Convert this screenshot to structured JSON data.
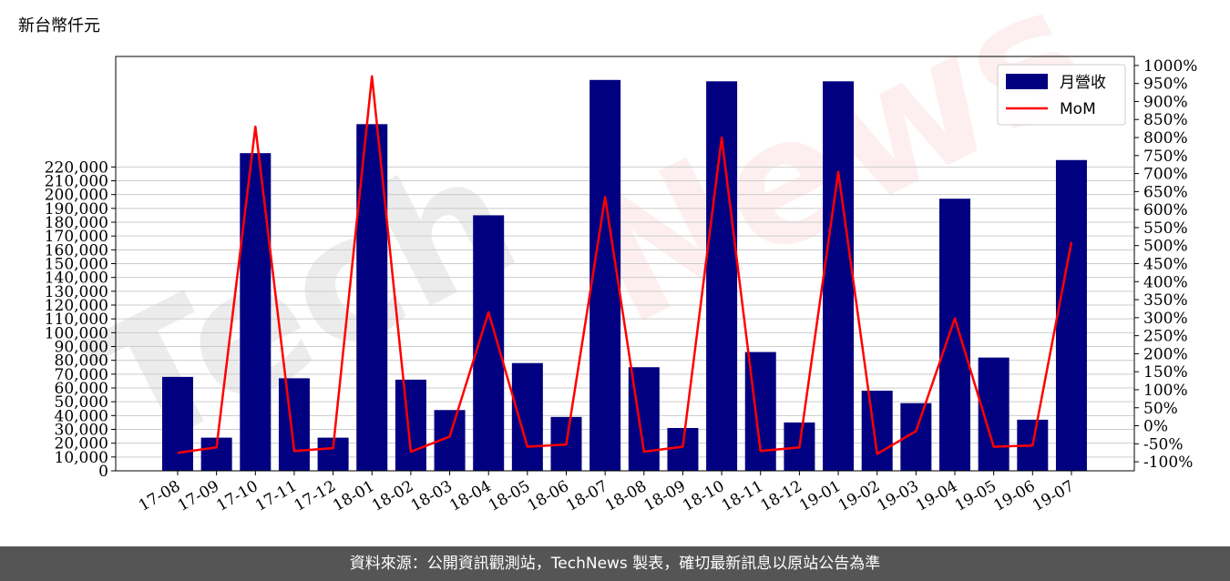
{
  "unit_label": "新台幣仟元",
  "footer_text": "資料來源：公開資訊觀測站，TechNews 製表，確切最新訊息以原站公告為準",
  "watermark": {
    "text_dark": "Tech",
    "text_red": "News"
  },
  "colors": {
    "bar": "#000080",
    "line": "#ff0000",
    "grid": "#cccccc",
    "footer_bg": "#555555"
  },
  "chart_data": {
    "type": "bar",
    "categories": [
      "17-08",
      "17-09",
      "17-10",
      "17-11",
      "17-12",
      "18-01",
      "18-02",
      "18-03",
      "18-04",
      "18-05",
      "18-06",
      "18-07",
      "18-08",
      "18-09",
      "18-10",
      "18-11",
      "18-12",
      "19-01",
      "19-02",
      "19-03",
      "19-04",
      "19-05",
      "19-06",
      "19-07"
    ],
    "series": [
      {
        "name": "月營收",
        "type": "bar",
        "axis": "left",
        "values": [
          68000,
          24000,
          230000,
          67000,
          24000,
          251000,
          66000,
          44000,
          185000,
          78000,
          39000,
          283000,
          75000,
          31000,
          282000,
          86000,
          35000,
          282000,
          58000,
          49000,
          197000,
          82000,
          37000,
          225000
        ]
      },
      {
        "name": "MoM",
        "type": "line",
        "axis": "right",
        "values": [
          -75,
          -60,
          830,
          -70,
          -62,
          970,
          -72,
          -30,
          315,
          -58,
          -52,
          635,
          -72,
          -58,
          800,
          -70,
          -60,
          705,
          -78,
          -15,
          298,
          -58,
          -55,
          510
        ]
      }
    ],
    "left_axis": {
      "ylim": [
        0,
        300000
      ],
      "ticks": [
        "0",
        "10,000",
        "20,000",
        "30,000",
        "40,000",
        "50,000",
        "60,000",
        "70,000",
        "80,000",
        "90,000",
        "100,000",
        "110,000",
        "120,000",
        "130,000",
        "140,000",
        "150,000",
        "160,000",
        "170,000",
        "180,000",
        "190,000",
        "200,000",
        "210,000",
        "220,000"
      ]
    },
    "right_axis": {
      "ylim": [
        -125,
        1025
      ],
      "ticks": [
        "-100%",
        "-50%",
        "0%",
        "50%",
        "100%",
        "150%",
        "200%",
        "250%",
        "300%",
        "350%",
        "400%",
        "450%",
        "500%",
        "550%",
        "600%",
        "650%",
        "700%",
        "750%",
        "800%",
        "850%",
        "900%",
        "950%",
        "1000%"
      ]
    },
    "grid": true,
    "legend": {
      "placement": "top-right",
      "entries": [
        "月營收",
        "MoM"
      ]
    }
  }
}
